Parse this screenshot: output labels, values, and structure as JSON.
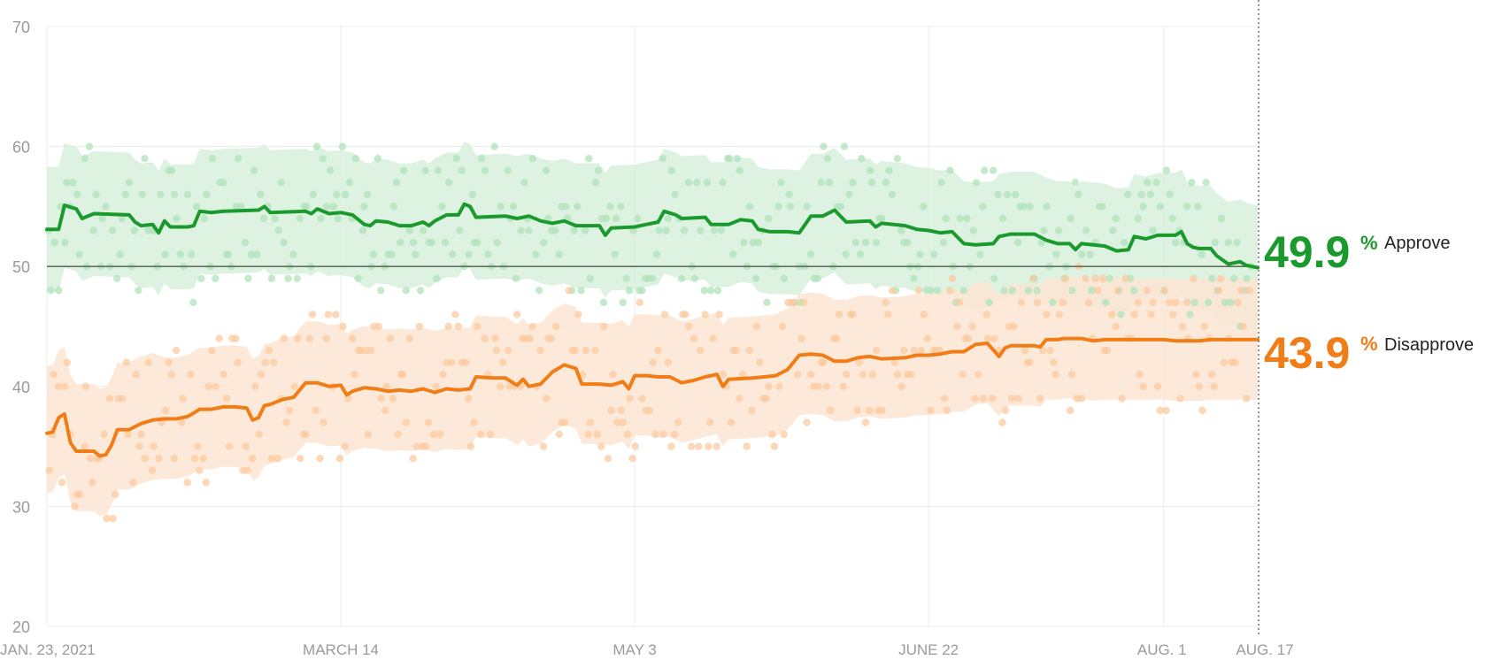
{
  "chart_data": {
    "type": "line",
    "y_ticks": [
      "20",
      "30",
      "40",
      "50",
      "60",
      "70"
    ],
    "ylim": [
      20,
      70
    ],
    "x_tick_labels": [
      "JAN. 23, 2021",
      "MARCH 14",
      "MAY 3",
      "JUNE 22",
      "AUG. 1",
      "AUG. 17"
    ],
    "x_tick_days": [
      0,
      50,
      100,
      150,
      190,
      206
    ],
    "x_range_days": [
      0,
      206
    ],
    "reference_line": 50,
    "series": [
      {
        "name": "Approve",
        "color": "#1a9a2d",
        "band_color": "#d7f0dc",
        "dot_color": "#b0e3bb",
        "current_value": "49.9",
        "unit": "%",
        "points": [
          [
            0,
            53.1
          ],
          [
            2,
            53.1
          ],
          [
            3,
            55.1
          ],
          [
            5,
            54.8
          ],
          [
            6,
            54.0
          ],
          [
            8,
            54.4
          ],
          [
            14,
            54.3
          ],
          [
            15,
            53.7
          ],
          [
            16,
            53.4
          ],
          [
            18,
            53.5
          ],
          [
            19,
            52.8
          ],
          [
            20,
            53.8
          ],
          [
            21,
            53.3
          ],
          [
            24,
            53.3
          ],
          [
            25,
            53.4
          ],
          [
            26,
            54.6
          ],
          [
            28,
            54.5
          ],
          [
            30,
            54.6
          ],
          [
            36,
            54.7
          ],
          [
            37,
            55.0
          ],
          [
            38,
            54.5
          ],
          [
            44,
            54.6
          ],
          [
            45,
            54.4
          ],
          [
            46,
            54.8
          ],
          [
            48,
            54.4
          ],
          [
            50,
            54.5
          ],
          [
            52,
            54.3
          ],
          [
            54,
            53.5
          ],
          [
            55,
            53.4
          ],
          [
            56,
            53.8
          ],
          [
            58,
            53.7
          ],
          [
            60,
            53.4
          ],
          [
            62,
            53.4
          ],
          [
            64,
            53.7
          ],
          [
            65,
            53.4
          ],
          [
            66,
            53.8
          ],
          [
            68,
            54.3
          ],
          [
            70,
            54.3
          ],
          [
            71,
            55.2
          ],
          [
            72,
            55.0
          ],
          [
            73,
            54.1
          ],
          [
            78,
            54.2
          ],
          [
            80,
            54.0
          ],
          [
            82,
            54.2
          ],
          [
            84,
            53.8
          ],
          [
            86,
            53.6
          ],
          [
            88,
            53.8
          ],
          [
            90,
            53.4
          ],
          [
            94,
            53.4
          ],
          [
            95,
            52.6
          ],
          [
            96,
            53.2
          ],
          [
            100,
            53.3
          ],
          [
            102,
            53.5
          ],
          [
            104,
            53.7
          ],
          [
            105,
            54.6
          ],
          [
            107,
            54.3
          ],
          [
            108,
            54.0
          ],
          [
            112,
            54.1
          ],
          [
            113,
            53.5
          ],
          [
            116,
            53.5
          ],
          [
            118,
            53.9
          ],
          [
            120,
            53.8
          ],
          [
            121,
            53.1
          ],
          [
            123,
            52.9
          ],
          [
            126,
            52.9
          ],
          [
            128,
            52.8
          ],
          [
            130,
            54.2
          ],
          [
            132,
            54.2
          ],
          [
            134,
            54.7
          ],
          [
            136,
            53.7
          ],
          [
            140,
            53.8
          ],
          [
            141,
            53.3
          ],
          [
            142,
            53.6
          ],
          [
            146,
            53.4
          ],
          [
            148,
            53.1
          ],
          [
            150,
            53.0
          ],
          [
            152,
            52.8
          ],
          [
            154,
            52.9
          ],
          [
            156,
            51.9
          ],
          [
            158,
            51.8
          ],
          [
            161,
            51.9
          ],
          [
            162,
            52.5
          ],
          [
            164,
            52.7
          ],
          [
            168,
            52.7
          ],
          [
            170,
            52.2
          ],
          [
            172,
            51.9
          ],
          [
            174,
            51.9
          ],
          [
            175,
            51.4
          ],
          [
            176,
            51.9
          ],
          [
            180,
            51.7
          ],
          [
            182,
            51.3
          ],
          [
            184,
            51.4
          ],
          [
            185,
            52.5
          ],
          [
            187,
            52.3
          ],
          [
            189,
            52.6
          ],
          [
            192,
            52.6
          ],
          [
            193,
            52.9
          ],
          [
            194,
            51.9
          ],
          [
            195,
            51.6
          ],
          [
            196,
            51.5
          ],
          [
            198,
            51.5
          ],
          [
            199,
            50.9
          ],
          [
            201,
            50.2
          ],
          [
            202,
            50.3
          ],
          [
            203,
            50.4
          ],
          [
            204,
            50.1
          ],
          [
            206,
            49.9
          ]
        ]
      },
      {
        "name": "Disapprove",
        "color": "#f07d16",
        "band_color": "#fde5d2",
        "dot_color": "#fbcaa0",
        "current_value": "43.9",
        "unit": "%",
        "points": [
          [
            0,
            36.1
          ],
          [
            1,
            36.2
          ],
          [
            2,
            37.4
          ],
          [
            3,
            37.7
          ],
          [
            4,
            35.3
          ],
          [
            5,
            34.6
          ],
          [
            8,
            34.6
          ],
          [
            9,
            34.2
          ],
          [
            10,
            34.3
          ],
          [
            11,
            35.1
          ],
          [
            12,
            36.4
          ],
          [
            14,
            36.4
          ],
          [
            16,
            36.9
          ],
          [
            18,
            37.2
          ],
          [
            20,
            37.3
          ],
          [
            22,
            37.3
          ],
          [
            24,
            37.5
          ],
          [
            26,
            38.1
          ],
          [
            28,
            38.1
          ],
          [
            30,
            38.3
          ],
          [
            32,
            38.3
          ],
          [
            34,
            38.2
          ],
          [
            35,
            37.2
          ],
          [
            36,
            37.4
          ],
          [
            37,
            38.4
          ],
          [
            38,
            38.5
          ],
          [
            40,
            38.9
          ],
          [
            42,
            39.1
          ],
          [
            44,
            40.3
          ],
          [
            46,
            40.3
          ],
          [
            48,
            40.0
          ],
          [
            50,
            40.1
          ],
          [
            51,
            39.3
          ],
          [
            52,
            39.6
          ],
          [
            54,
            39.9
          ],
          [
            56,
            39.8
          ],
          [
            58,
            39.6
          ],
          [
            60,
            39.7
          ],
          [
            62,
            39.6
          ],
          [
            64,
            39.8
          ],
          [
            66,
            39.5
          ],
          [
            68,
            39.8
          ],
          [
            70,
            39.7
          ],
          [
            72,
            39.8
          ],
          [
            73,
            40.8
          ],
          [
            76,
            40.7
          ],
          [
            78,
            40.7
          ],
          [
            80,
            40.1
          ],
          [
            81,
            40.6
          ],
          [
            82,
            40.0
          ],
          [
            84,
            40.2
          ],
          [
            86,
            41.2
          ],
          [
            88,
            41.8
          ],
          [
            90,
            41.5
          ],
          [
            91,
            40.2
          ],
          [
            94,
            40.2
          ],
          [
            96,
            40.1
          ],
          [
            98,
            40.4
          ],
          [
            99,
            39.8
          ],
          [
            100,
            40.9
          ],
          [
            102,
            40.9
          ],
          [
            104,
            40.8
          ],
          [
            106,
            40.8
          ],
          [
            108,
            40.3
          ],
          [
            110,
            40.5
          ],
          [
            112,
            40.8
          ],
          [
            114,
            41.0
          ],
          [
            115,
            40.0
          ],
          [
            116,
            40.6
          ],
          [
            120,
            40.7
          ],
          [
            122,
            40.8
          ],
          [
            124,
            40.9
          ],
          [
            126,
            41.4
          ],
          [
            128,
            42.6
          ],
          [
            130,
            42.7
          ],
          [
            132,
            42.6
          ],
          [
            134,
            42.1
          ],
          [
            136,
            42.1
          ],
          [
            138,
            42.4
          ],
          [
            140,
            42.5
          ],
          [
            142,
            42.3
          ],
          [
            146,
            42.4
          ],
          [
            148,
            42.6
          ],
          [
            150,
            42.6
          ],
          [
            152,
            42.7
          ],
          [
            154,
            42.9
          ],
          [
            156,
            42.9
          ],
          [
            158,
            43.5
          ],
          [
            160,
            43.6
          ],
          [
            162,
            42.5
          ],
          [
            163,
            43.2
          ],
          [
            164,
            43.4
          ],
          [
            168,
            43.4
          ],
          [
            169,
            43.3
          ],
          [
            170,
            43.9
          ],
          [
            172,
            43.9
          ],
          [
            173,
            44.0
          ],
          [
            176,
            44.0
          ],
          [
            178,
            43.8
          ],
          [
            180,
            43.9
          ],
          [
            182,
            43.9
          ],
          [
            184,
            43.9
          ],
          [
            186,
            43.9
          ],
          [
            188,
            43.9
          ],
          [
            190,
            43.9
          ],
          [
            192,
            43.8
          ],
          [
            194,
            43.8
          ],
          [
            196,
            43.8
          ],
          [
            198,
            43.9
          ],
          [
            200,
            43.9
          ],
          [
            202,
            43.9
          ],
          [
            204,
            43.9
          ],
          [
            206,
            43.9
          ]
        ]
      }
    ]
  }
}
